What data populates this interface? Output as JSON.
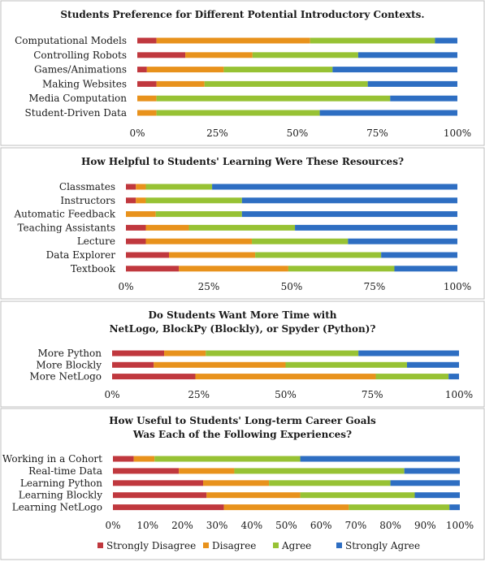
{
  "colors": {
    "Strongly Disagree": "#c0383e",
    "Disagree": "#e8921c",
    "Agree": "#97c234",
    "Strongly Agree": "#2e6ec2"
  },
  "legend": {
    "items": [
      "Strongly Disagree",
      "Disagree",
      "Agree",
      "Strongly Agree"
    ]
  },
  "chart_data": [
    {
      "type": "bar",
      "orientation": "horizontal",
      "stacked": true,
      "title": "Students Preference for Different Potential Introductory  Contexts.",
      "xlim": [
        0,
        100
      ],
      "ticks": [
        "0%",
        "25%",
        "50%",
        "75%",
        "100%"
      ],
      "categories": [
        "Computational Models",
        "Controlling Robots",
        "Games/Animations",
        "Making Websites",
        "Media Computation",
        "Student-Driven Data"
      ],
      "series": [
        {
          "name": "Strongly Disagree",
          "values": [
            6,
            15,
            3,
            6,
            0,
            0
          ]
        },
        {
          "name": "Disagree",
          "values": [
            48,
            21,
            24,
            15,
            6,
            6
          ]
        },
        {
          "name": "Agree",
          "values": [
            39,
            33,
            34,
            51,
            73,
            51
          ]
        },
        {
          "name": "Strongly Agree",
          "values": [
            7,
            31,
            39,
            28,
            21,
            43
          ]
        }
      ]
    },
    {
      "type": "bar",
      "orientation": "horizontal",
      "stacked": true,
      "title": "How Helpful to Students' Learning Were These Resources?",
      "xlim": [
        0,
        100
      ],
      "ticks": [
        "0%",
        "25%",
        "50%",
        "75%",
        "100%"
      ],
      "categories": [
        "Classmates",
        "Instructors",
        "Automatic Feedback",
        "Teaching Assistants",
        "Lecture",
        "Data Explorer",
        "Textbook"
      ],
      "series": [
        {
          "name": "Strongly Disagree",
          "values": [
            3,
            3,
            0,
            6,
            6,
            13,
            16
          ]
        },
        {
          "name": "Disagree",
          "values": [
            3,
            3,
            9,
            13,
            32,
            26,
            33
          ]
        },
        {
          "name": "Agree",
          "values": [
            20,
            29,
            26,
            32,
            29,
            38,
            32
          ]
        },
        {
          "name": "Strongly Agree",
          "values": [
            74,
            65,
            65,
            49,
            33,
            23,
            19
          ]
        }
      ]
    },
    {
      "type": "bar",
      "orientation": "horizontal",
      "stacked": true,
      "title": "Do Students Want More Time with NetLogo, BlockPy (Blockly), or Spyder (Python)?",
      "xlim": [
        0,
        100
      ],
      "ticks": [
        "0%",
        "25%",
        "50%",
        "75%",
        "100%"
      ],
      "categories": [
        "More Python",
        "More Blockly",
        "More NetLogo"
      ],
      "series": [
        {
          "name": "Strongly Disagree",
          "values": [
            15,
            12,
            24
          ]
        },
        {
          "name": "Disagree",
          "values": [
            12,
            38,
            52
          ]
        },
        {
          "name": "Agree",
          "values": [
            44,
            35,
            21
          ]
        },
        {
          "name": "Strongly Agree",
          "values": [
            29,
            15,
            3
          ]
        }
      ]
    },
    {
      "type": "bar",
      "orientation": "horizontal",
      "stacked": true,
      "title": "How Useful to Students' Long-term Career Goals Was Each of the Following Experiences?",
      "xlim": [
        0,
        100
      ],
      "ticks": [
        "0%",
        "10%",
        "20%",
        "30%",
        "40%",
        "50%",
        "60%",
        "70%",
        "80%",
        "90%",
        "100%"
      ],
      "categories": [
        "Working in a Cohort",
        "Real-time Data",
        "Learning Python",
        "Learning Blockly",
        "Learning NetLogo"
      ],
      "series": [
        {
          "name": "Strongly Disagree",
          "values": [
            6,
            19,
            26,
            27,
            32
          ]
        },
        {
          "name": "Disagree",
          "values": [
            6,
            16,
            19,
            27,
            36
          ]
        },
        {
          "name": "Agree",
          "values": [
            42,
            49,
            35,
            33,
            29
          ]
        },
        {
          "name": "Strongly Agree",
          "values": [
            46,
            16,
            20,
            13,
            3
          ]
        }
      ]
    }
  ]
}
